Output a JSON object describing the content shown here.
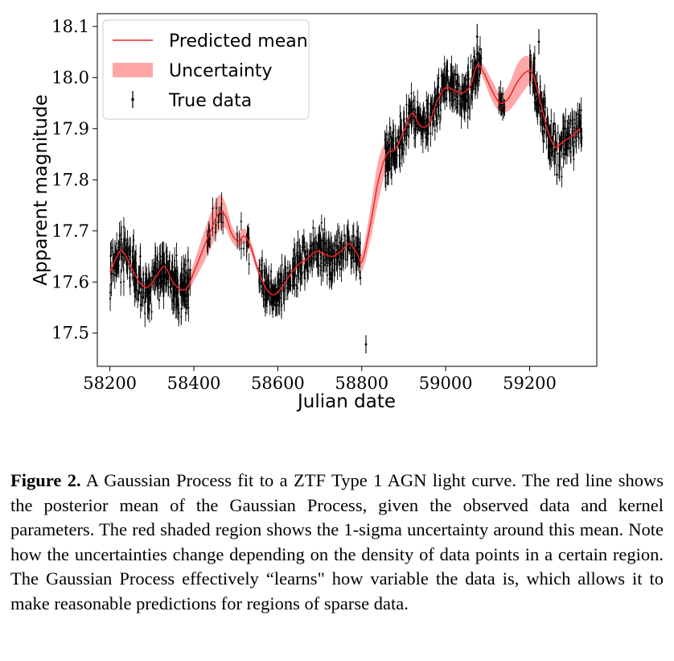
{
  "chart_data": {
    "type": "line",
    "xlabel": "Julian date",
    "ylabel": "Apparent magnitude",
    "xlim": [
      58170,
      59360
    ],
    "ylim": [
      17.435,
      18.125
    ],
    "x_ticks": [
      58200,
      58400,
      58600,
      58800,
      59000,
      59200
    ],
    "x_tick_labels": [
      "58200",
      "58400",
      "58600",
      "58800",
      "59000",
      "59200"
    ],
    "y_ticks": [
      17.5,
      17.6,
      17.7,
      17.8,
      17.9,
      18.0,
      18.1
    ],
    "y_tick_labels": [
      "17.5",
      "17.6",
      "17.7",
      "17.8",
      "17.9",
      "18.0",
      "18.1"
    ],
    "grid": false,
    "legend_position": "top-left",
    "legend": [
      "Predicted mean",
      "Uncertainty",
      "True data"
    ],
    "series": [
      {
        "name": "Predicted mean",
        "color": "#e8262b",
        "x": [
          58200,
          58220,
          58230,
          58250,
          58270,
          58290,
          58310,
          58330,
          58350,
          58370,
          58385,
          58400,
          58420,
          58440,
          58460,
          58475,
          58490,
          58505,
          58520,
          58535,
          58550,
          58570,
          58590,
          58610,
          58630,
          58650,
          58670,
          58690,
          58710,
          58730,
          58750,
          58770,
          58790,
          58800,
          58820,
          58840,
          58860,
          58880,
          58900,
          58920,
          58940,
          58960,
          58980,
          59000,
          59020,
          59040,
          59060,
          59075,
          59090,
          59110,
          59130,
          59150,
          59170,
          59190,
          59205,
          59220,
          59240,
          59260,
          59280,
          59300,
          59320
        ],
        "y": [
          17.62,
          17.655,
          17.66,
          17.63,
          17.6,
          17.59,
          17.61,
          17.63,
          17.6,
          17.585,
          17.59,
          17.62,
          17.66,
          17.7,
          17.735,
          17.73,
          17.695,
          17.68,
          17.69,
          17.67,
          17.63,
          17.59,
          17.575,
          17.59,
          17.615,
          17.635,
          17.645,
          17.66,
          17.655,
          17.65,
          17.66,
          17.675,
          17.655,
          17.64,
          17.71,
          17.8,
          17.85,
          17.86,
          17.895,
          17.93,
          17.905,
          17.91,
          17.955,
          17.98,
          17.975,
          17.97,
          17.985,
          18.025,
          18.01,
          17.975,
          17.95,
          17.96,
          17.99,
          18.01,
          18.01,
          17.97,
          17.905,
          17.865,
          17.875,
          17.885,
          17.9
        ],
        "sigma": [
          0.015,
          0.008,
          0.008,
          0.008,
          0.007,
          0.007,
          0.007,
          0.007,
          0.007,
          0.008,
          0.012,
          0.018,
          0.028,
          0.034,
          0.035,
          0.025,
          0.016,
          0.013,
          0.015,
          0.012,
          0.009,
          0.007,
          0.007,
          0.007,
          0.007,
          0.007,
          0.007,
          0.007,
          0.007,
          0.007,
          0.007,
          0.008,
          0.012,
          0.018,
          0.03,
          0.04,
          0.025,
          0.01,
          0.008,
          0.008,
          0.008,
          0.008,
          0.008,
          0.008,
          0.008,
          0.008,
          0.008,
          0.01,
          0.014,
          0.02,
          0.018,
          0.025,
          0.035,
          0.032,
          0.022,
          0.012,
          0.008,
          0.008,
          0.008,
          0.008,
          0.008
        ]
      },
      {
        "name": "True data",
        "color": "#000000",
        "type": "scatter-errorbar",
        "segments": [
          {
            "x0": 58200,
            "x1": 58392,
            "n": 310,
            "err": 0.022,
            "scatter": 0.025
          },
          {
            "x0": 58432,
            "x1": 58470,
            "n": 18,
            "err": 0.018,
            "scatter": 0.02
          },
          {
            "x0": 58500,
            "x1": 58535,
            "n": 14,
            "err": 0.02,
            "scatter": 0.018
          },
          {
            "x0": 58555,
            "x1": 58800,
            "n": 330,
            "err": 0.02,
            "scatter": 0.02
          },
          {
            "x0": 58855,
            "x1": 59085,
            "n": 360,
            "err": 0.02,
            "scatter": 0.022
          },
          {
            "x0": 59125,
            "x1": 59142,
            "n": 14,
            "err": 0.018,
            "scatter": 0.015
          },
          {
            "x0": 59200,
            "x1": 59325,
            "n": 170,
            "err": 0.022,
            "scatter": 0.022
          }
        ],
        "outliers": [
          {
            "x": 58810,
            "y": 17.478,
            "err": 0.018
          },
          {
            "x": 59075,
            "y": 18.08,
            "err": 0.025
          },
          {
            "x": 59222,
            "y": 18.07,
            "err": 0.025
          },
          {
            "x": 59265,
            "y": 17.81,
            "err": 0.02
          }
        ]
      }
    ],
    "uncertainty_color": "#ffa7a7"
  },
  "caption": {
    "label": "Figure 2.",
    "text": " A Gaussian Process fit to a ZTF Type 1 AGN light curve. The red line shows the posterior mean of the Gaussian Process, given the observed data and kernel parameters. The red shaded region shows the 1-sigma uncertainty around this mean. Note how the uncertainties change depending on the density of data points in a certain region. The Gaussian Process effectively “learns\" how variable the data is, which allows it to make reasonable predictions for regions of sparse data."
  }
}
